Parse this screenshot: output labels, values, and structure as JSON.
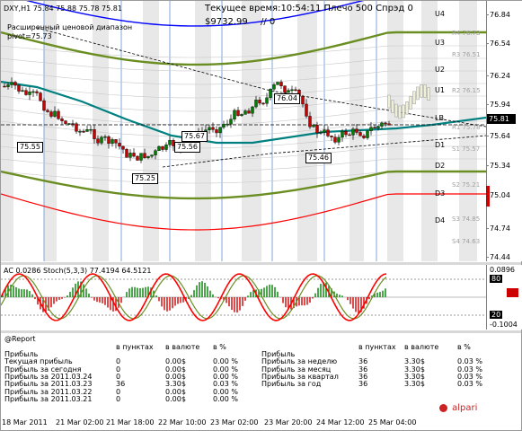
{
  "header": {
    "symbol_line": "DXY,H1  75.84 75.88 75.78 75.81",
    "server_time": "Текущее время:10:54:11 Плечо 500 Спрэд 0",
    "balance": "$9732.99",
    "sep_value": "// 0",
    "legend_line1": "Расширенный ценовой диапазон",
    "legend_line2": "pivot=75.73"
  },
  "price_axis": {
    "labels": [
      "76.84",
      "76.54",
      "76.24",
      "75.94",
      "75.64",
      "75.34",
      "75.04",
      "74.74",
      "74.44"
    ],
    "current_price": "75.81"
  },
  "levels": [
    {
      "name": "U4",
      "value": ""
    },
    {
      "name": "U3",
      "value": ""
    },
    {
      "name": "U2",
      "value": ""
    },
    {
      "name": "U1",
      "value": ""
    },
    {
      "name": "LB",
      "value": ""
    },
    {
      "name": "D1",
      "value": ""
    },
    {
      "name": "D2",
      "value": ""
    },
    {
      "name": "D3",
      "value": ""
    },
    {
      "name": "D4",
      "value": ""
    }
  ],
  "pivot_labels": [
    "R4 76.73",
    "R3 76.51",
    "R2 76.15",
    "R1 75.78",
    "S1 75.57",
    "S2 75.21",
    "S3 74.85",
    "S4 74.63"
  ],
  "price_tags": [
    "75.55",
    "75.25",
    "75.56",
    "75.67",
    "76.04",
    "75.46"
  ],
  "osc": {
    "header": "AC 0.0286  Stoch(5,3,3) 77.4194 64.5121",
    "axis_labels": [
      "0.0896",
      "80",
      "20",
      "-0.1004"
    ]
  },
  "colors": {
    "upper_band": "#0000ff",
    "olive_band": "#6b8e23",
    "teal_ma": "#008080",
    "lower_band": "#ff0000",
    "stoch_main": "#ff0000",
    "stoch_signal": "#6b8e23",
    "candle_up": "#008000",
    "candle_down": "#cc0000"
  },
  "report": {
    "title": "@Report",
    "left_headers": [
      "в пунктах",
      "в валюте",
      "в %"
    ],
    "left_rows": [
      {
        "label": "Прибыль",
        "points": "",
        "money": "",
        "pct": ""
      },
      {
        "label": "Текущая прибыль",
        "points": "0",
        "money": "0.00$",
        "pct": "0.00 %"
      },
      {
        "label": "Прибыль за сегодня",
        "points": "0",
        "money": "0.00$",
        "pct": "0.00 %"
      },
      {
        "label": "Прибыль за 2011.03.24",
        "points": "0",
        "money": "0.00$",
        "pct": "0.00 %"
      },
      {
        "label": "Прибыль за 2011.03.23",
        "points": "36",
        "money": "3.30$",
        "pct": "0.03 %"
      },
      {
        "label": "Прибыль за 2011.03.22",
        "points": "0",
        "money": "0.00$",
        "pct": "0.00 %"
      },
      {
        "label": "Прибыль за 2011.03.21",
        "points": "0",
        "money": "0.00$",
        "pct": "0.00 %"
      }
    ],
    "right_rows": [
      {
        "label": "Прибыль",
        "points": "",
        "money": "",
        "pct": ""
      },
      {
        "label": "Прибыль за неделю",
        "points": "36",
        "money": "3.30$",
        "pct": "0.03 %"
      },
      {
        "label": "Прибыль за месяц",
        "points": "36",
        "money": "3.30$",
        "pct": "0.03 %"
      },
      {
        "label": "Прибыль за квартал",
        "points": "36",
        "money": "3.30$",
        "pct": "0.03 %"
      },
      {
        "label": "Прибыль за год",
        "points": "36",
        "money": "3.30$",
        "pct": "0.03 %"
      }
    ],
    "brand": "alpari"
  },
  "time_axis": [
    "18 Mar 2011",
    "21 Mar 02:00",
    "21 Mar 18:00",
    "22 Mar 10:00",
    "23 Mar 02:00",
    "23 Mar 20:00",
    "24 Mar 12:00",
    "25 Mar 04:00"
  ]
}
